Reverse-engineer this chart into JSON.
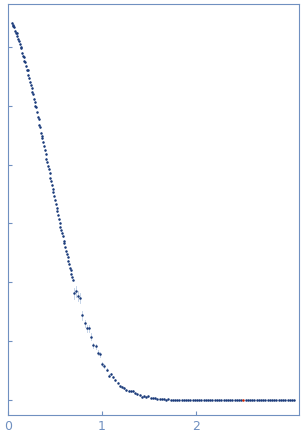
{
  "title": "",
  "xlabel": "",
  "ylabel": "",
  "xlim": [
    0,
    3.1
  ],
  "xticks": [
    0,
    1,
    2
  ],
  "background_color": "#ffffff",
  "point_color": "#1a3a7a",
  "error_color": "#a0b8d8",
  "outlier_color": "#cc2200",
  "axis_color": "#7090c0",
  "tick_color": "#7090c0",
  "label_color": "#7090c0",
  "figsize": [
    3.03,
    4.37
  ],
  "dpi": 100
}
